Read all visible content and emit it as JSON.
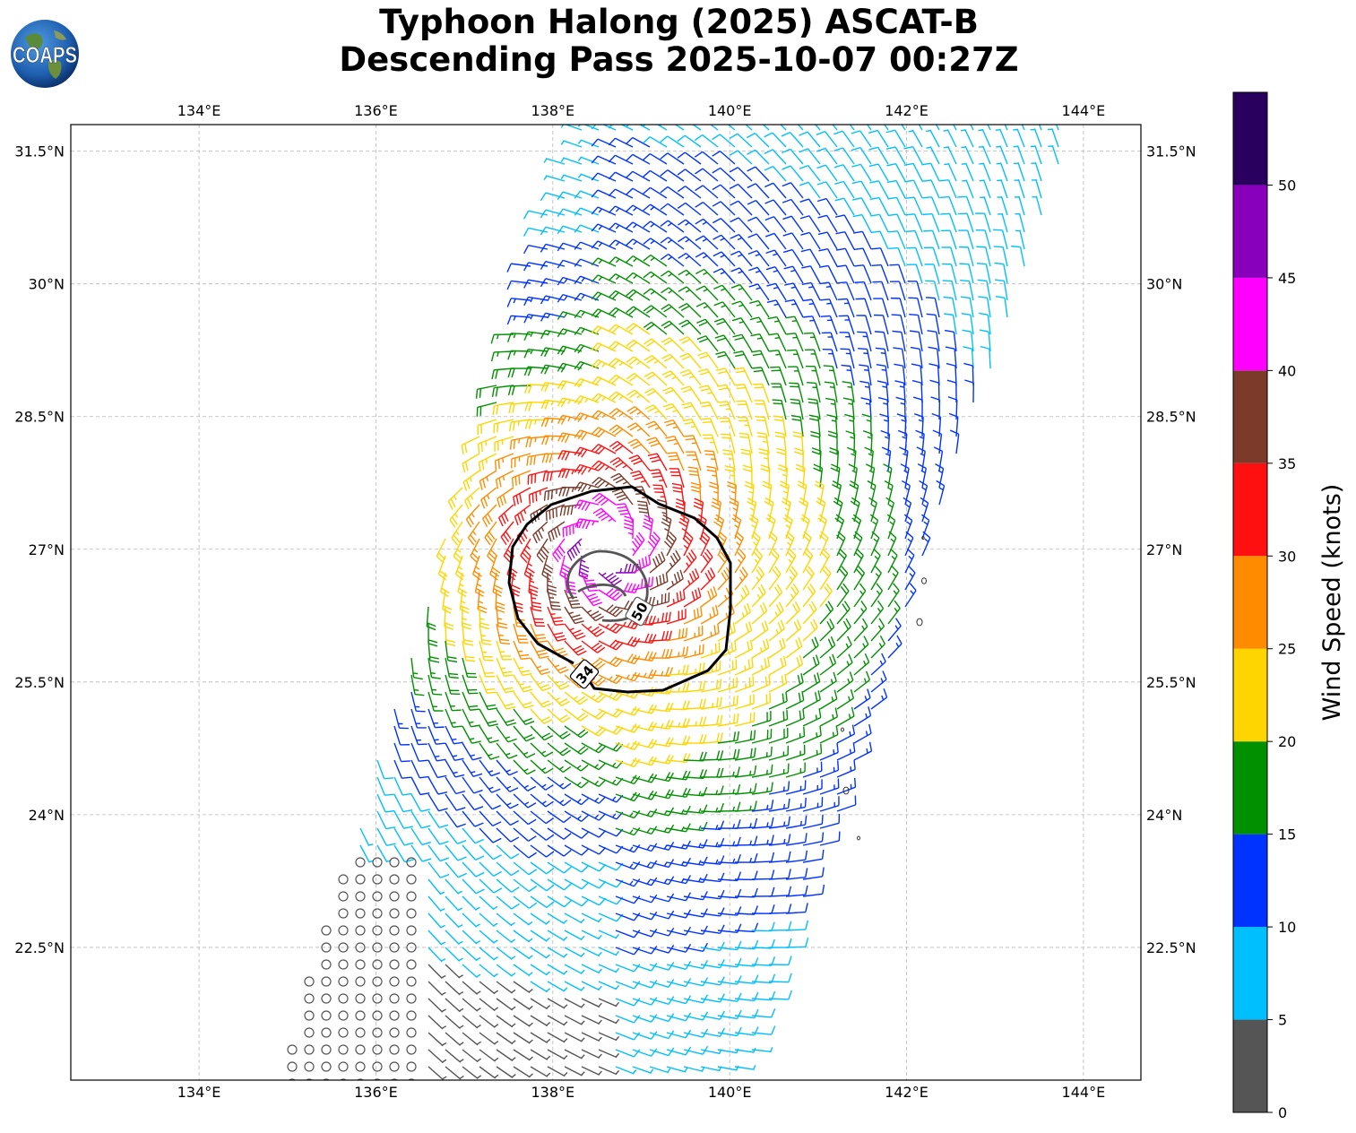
{
  "title": {
    "line1": "Typhoon Halong (2025) ASCAT-B",
    "line2": "Descending Pass 2025-10-07 00:27Z"
  },
  "logo": {
    "text": "COAPS"
  },
  "map": {
    "lon_range": [
      132.55,
      144.65
    ],
    "lat_range": [
      21.0,
      31.8
    ],
    "lon_ticks": [
      "134°E",
      "136°E",
      "138°E",
      "140°E",
      "142°E",
      "144°E"
    ],
    "lat_ticks": [
      "31.5°N",
      "30°N",
      "28.5°N",
      "27°N",
      "25.5°N",
      "24°N",
      "22.5°N"
    ],
    "storm_center": {
      "lon": 138.6,
      "lat": 27.0
    },
    "contours": [
      {
        "label": "34",
        "color": "#000000"
      },
      {
        "label": "50",
        "color": "#555555"
      }
    ],
    "grid": true
  },
  "colorbar": {
    "label": "Wind Speed (knots)",
    "ticks": [
      "0",
      "5",
      "10",
      "15",
      "20",
      "25",
      "30",
      "35",
      "40",
      "45",
      "50"
    ],
    "bins": [
      {
        "min": 0,
        "max": 5,
        "color": "#555555"
      },
      {
        "min": 5,
        "max": 10,
        "color": "#00bfff"
      },
      {
        "min": 10,
        "max": 15,
        "color": "#0033ff"
      },
      {
        "min": 15,
        "max": 20,
        "color": "#009000"
      },
      {
        "min": 20,
        "max": 25,
        "color": "#ffd500"
      },
      {
        "min": 25,
        "max": 30,
        "color": "#ff8c00"
      },
      {
        "min": 30,
        "max": 35,
        "color": "#ff1010"
      },
      {
        "min": 35,
        "max": 40,
        "color": "#7b3a2a"
      },
      {
        "min": 40,
        "max": 45,
        "color": "#ff00ff"
      },
      {
        "min": 45,
        "max": 50,
        "color": "#8800bb"
      },
      {
        "min": 50,
        "max": 55,
        "color": "#2a005e"
      }
    ]
  }
}
